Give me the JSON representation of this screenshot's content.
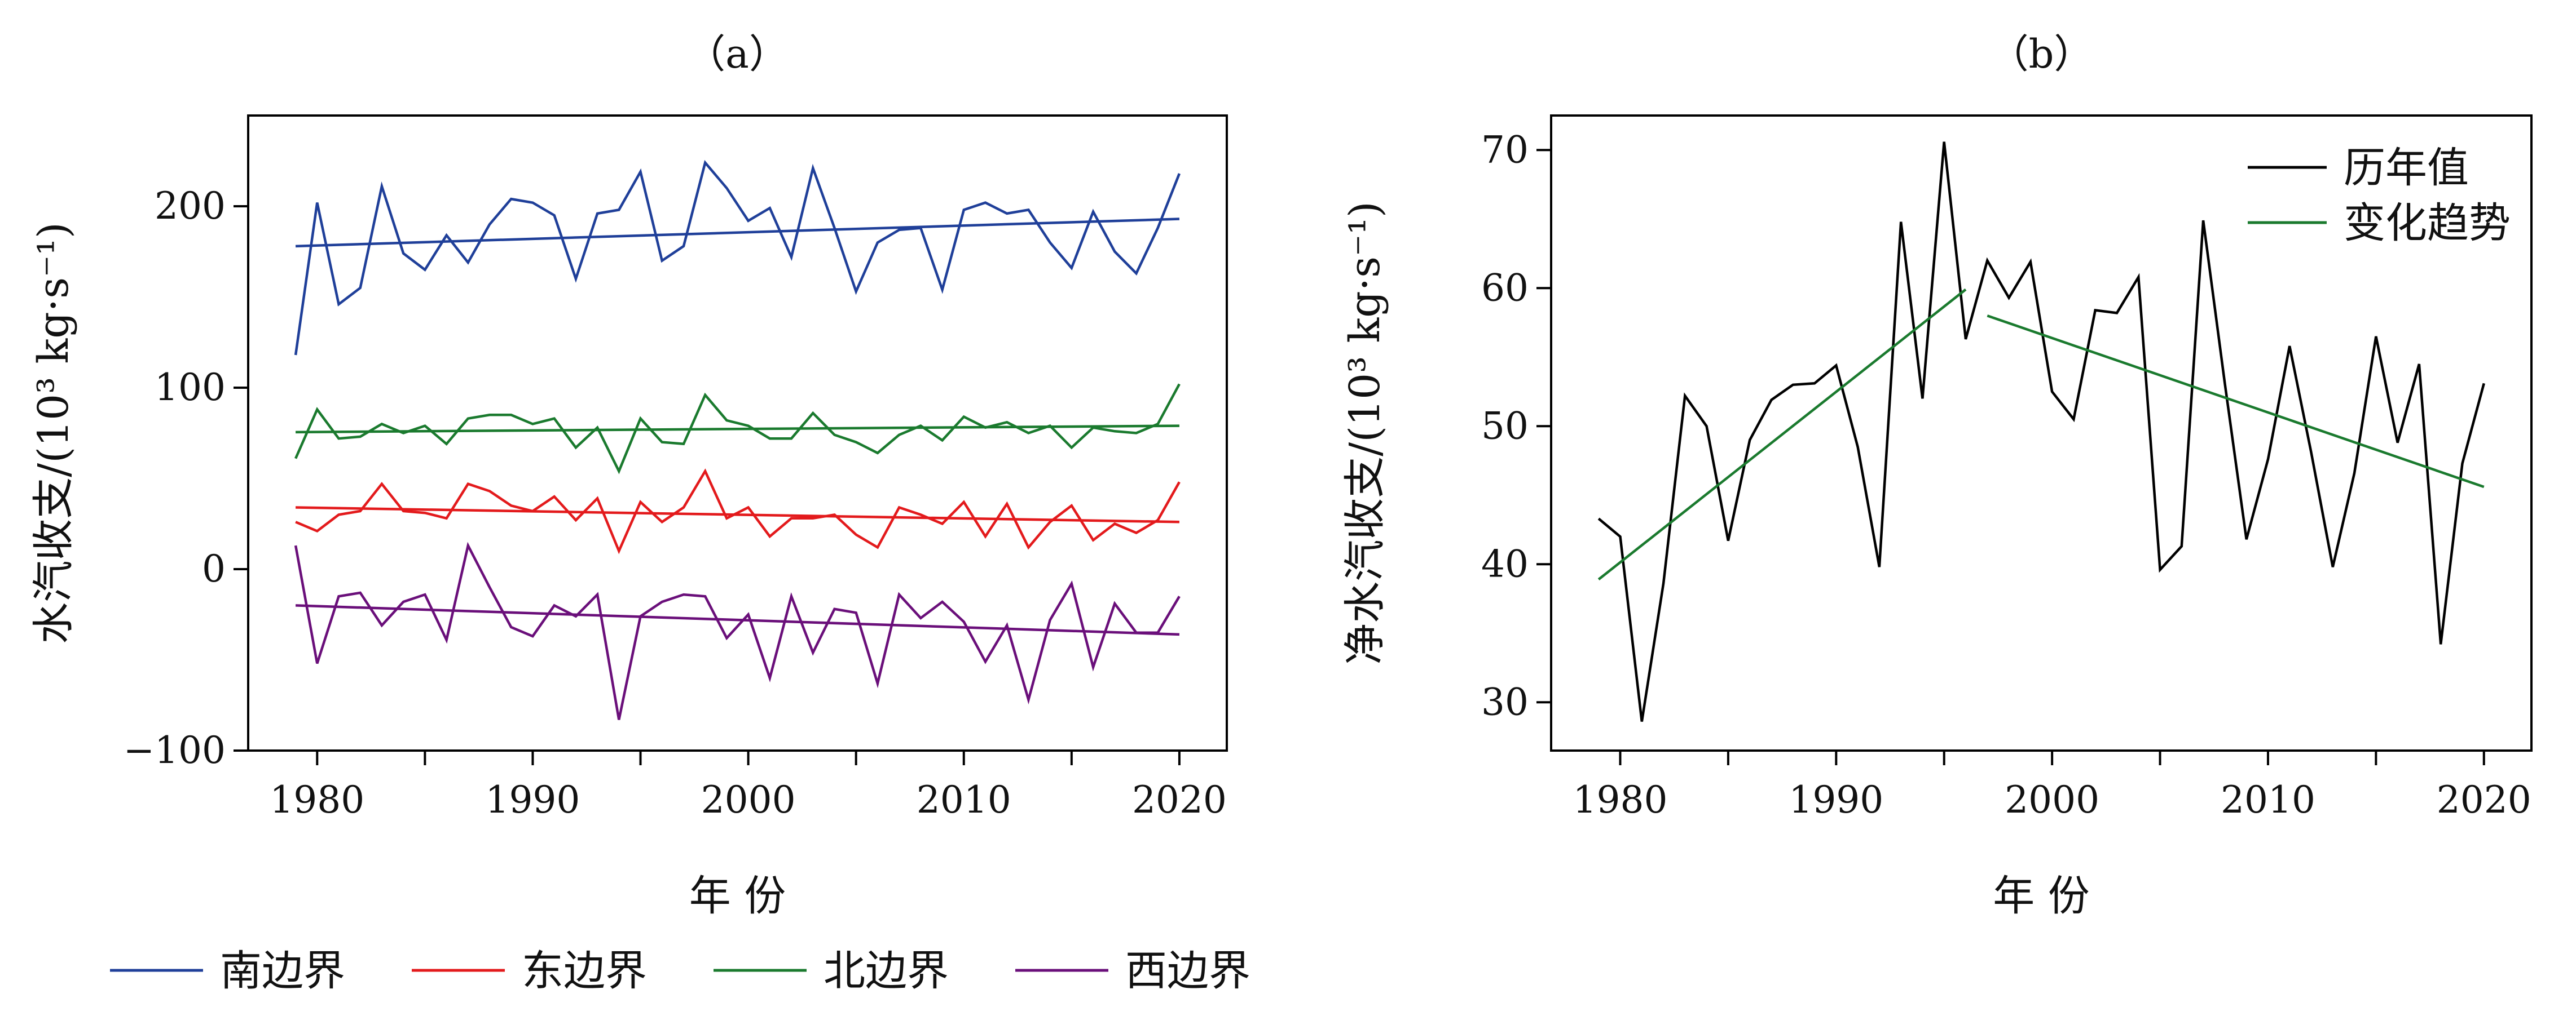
{
  "chart_data": [
    {
      "type": "line",
      "title": "（a）",
      "xlabel": "年 份",
      "ylabel": "水汽收支/(10³ kg·s⁻¹)",
      "xlim": [
        1976.8,
        2022.2
      ],
      "ylim": [
        -100,
        250
      ],
      "xticks": [
        1980,
        1990,
        2000,
        2010,
        2020
      ],
      "yticks": [
        -100,
        0,
        100,
        200
      ],
      "x": [
        1979,
        1980,
        1981,
        1982,
        1983,
        1984,
        1985,
        1986,
        1987,
        1988,
        1989,
        1990,
        1991,
        1992,
        1993,
        1994,
        1995,
        1996,
        1997,
        1998,
        1999,
        2000,
        2001,
        2002,
        2003,
        2004,
        2005,
        2006,
        2007,
        2008,
        2009,
        2010,
        2011,
        2012,
        2013,
        2014,
        2015,
        2016,
        2017,
        2018,
        2019,
        2020
      ],
      "series": [
        {
          "name": "南边界",
          "color": "#1f3f99",
          "values": [
            118,
            202,
            146,
            155,
            211,
            174,
            165,
            184,
            169,
            190,
            204,
            202,
            195,
            160,
            196,
            198,
            219,
            170,
            178,
            224,
            210,
            192,
            199,
            172,
            221,
            188,
            153,
            180,
            187,
            188,
            154,
            198,
            202,
            196,
            198,
            180,
            166,
            197,
            175,
            163,
            188,
            218
          ]
        },
        {
          "name": "东边界",
          "color": "#e31a1c",
          "values": [
            26,
            21,
            30,
            32,
            47,
            32,
            31,
            28,
            47,
            43,
            35,
            32,
            40,
            27,
            39,
            10,
            37,
            26,
            34,
            54,
            28,
            34,
            18,
            28,
            28,
            30,
            19,
            12,
            34,
            30,
            25,
            37,
            18,
            36,
            12,
            26,
            35,
            16,
            25,
            20,
            27,
            48
          ]
        },
        {
          "name": "北边界",
          "color": "#1a7a2e",
          "values": [
            61,
            88,
            72,
            73,
            80,
            75,
            79,
            69,
            83,
            85,
            85,
            80,
            83,
            67,
            78,
            54,
            83,
            70,
            69,
            96,
            82,
            79,
            72,
            72,
            86,
            74,
            70,
            64,
            74,
            79,
            71,
            84,
            78,
            81,
            75,
            79,
            67,
            78,
            76,
            75,
            80,
            102
          ]
        },
        {
          "name": "西边界",
          "color": "#6a0f7a",
          "values": [
            13,
            -52,
            -15,
            -13,
            -31,
            -18,
            -14,
            -39,
            13,
            -10,
            -32,
            -37,
            -20,
            -26,
            -14,
            -83,
            -26,
            -18,
            -14,
            -15,
            -38,
            -25,
            -60,
            -15,
            -46,
            -22,
            -24,
            -63,
            -14,
            -27,
            -18,
            -29,
            -51,
            -31,
            -72,
            -28,
            -8,
            -54,
            -19,
            -35,
            -35,
            -15
          ]
        }
      ],
      "trends": [
        {
          "series": "南边界",
          "x": [
            1979,
            2020
          ],
          "y": [
            178,
            193
          ]
        },
        {
          "series": "东边界",
          "x": [
            1979,
            2020
          ],
          "y": [
            34,
            26
          ]
        },
        {
          "series": "北边界",
          "x": [
            1979,
            2020
          ],
          "y": [
            75.5,
            79
          ]
        },
        {
          "series": "西边界",
          "x": [
            1979,
            2020
          ],
          "y": [
            -20,
            -36
          ]
        }
      ],
      "legend": {
        "placement": "bottom",
        "entries": [
          "南边界",
          "东边界",
          "北边界",
          "西边界"
        ]
      }
    },
    {
      "type": "line",
      "title": "（b）",
      "xlabel": "年 份",
      "ylabel": "净水汽收支/(10³ kg·s⁻¹)",
      "xlim": [
        1976.8,
        2022.2
      ],
      "ylim": [
        26.5,
        72.5
      ],
      "xticks": [
        1980,
        1990,
        2000,
        2010,
        2020
      ],
      "yticks": [
        30,
        40,
        50,
        60,
        70
      ],
      "x": [
        1979,
        1980,
        1981,
        1982,
        1983,
        1984,
        1985,
        1986,
        1987,
        1988,
        1989,
        1990,
        1991,
        1992,
        1993,
        1994,
        1995,
        1996,
        1997,
        1998,
        1999,
        2000,
        2001,
        2002,
        2003,
        2004,
        2005,
        2006,
        2007,
        2008,
        2009,
        2010,
        2011,
        2012,
        2013,
        2014,
        2015,
        2016,
        2017,
        2018,
        2019,
        2020
      ],
      "series": [
        {
          "name": "历年值",
          "color": "#000000",
          "values": [
            43.3,
            42.0,
            28.6,
            38.6,
            52.2,
            50.0,
            41.7,
            49.0,
            51.9,
            53.0,
            53.1,
            54.4,
            48.5,
            39.8,
            64.8,
            52.0,
            70.6,
            56.3,
            62.0,
            59.3,
            61.9,
            52.5,
            50.5,
            58.4,
            58.2,
            60.8,
            39.6,
            41.3,
            64.9,
            53.1,
            41.8,
            47.6,
            55.8,
            48.1,
            39.8,
            46.6,
            56.5,
            48.8,
            54.5,
            34.2,
            47.3,
            53.1
          ]
        },
        {
          "name": "变化趋势",
          "color": "#1a7a2e",
          "segments": [
            {
              "x": [
                1979,
                1996
              ],
              "y": [
                38.9,
                59.9
              ]
            },
            {
              "x": [
                1997,
                2020
              ],
              "y": [
                58.0,
                45.6
              ]
            }
          ]
        }
      ],
      "legend": {
        "placement": "top-right",
        "entries": [
          "历年值",
          "变化趋势"
        ]
      }
    }
  ]
}
